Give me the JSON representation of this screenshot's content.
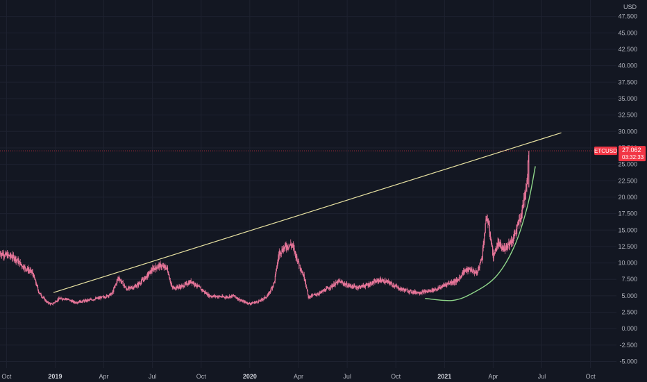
{
  "chart_data": {
    "type": "candlestick",
    "symbol": "ETCUSD",
    "currency": "USD",
    "last_price": "27.062",
    "countdown": "03:32:33",
    "y_ticks": [
      "47.500",
      "45.000",
      "42.500",
      "40.000",
      "37.500",
      "35.000",
      "32.500",
      "30.000",
      "27.500",
      "25.000",
      "22.500",
      "20.000",
      "17.500",
      "15.000",
      "12.500",
      "10.000",
      "7.500",
      "5.000",
      "2.500",
      "0.000",
      "-2.500",
      "-5.000"
    ],
    "y_tick_values": [
      47.5,
      45,
      42.5,
      40,
      37.5,
      35,
      32.5,
      30,
      27.5,
      25,
      22.5,
      20,
      17.5,
      15,
      12.5,
      10,
      7.5,
      5,
      2.5,
      0,
      -2.5,
      -5
    ],
    "ylim": [
      -6,
      50
    ],
    "x_ticks": [
      {
        "label": "Oct",
        "bold": false
      },
      {
        "label": "2019",
        "bold": true
      },
      {
        "label": "Apr",
        "bold": false
      },
      {
        "label": "Jul",
        "bold": false
      },
      {
        "label": "Oct",
        "bold": false
      },
      {
        "label": "2020",
        "bold": true
      },
      {
        "label": "Apr",
        "bold": false
      },
      {
        "label": "Jul",
        "bold": false
      },
      {
        "label": "Oct",
        "bold": false
      },
      {
        "label": "2021",
        "bold": true
      },
      {
        "label": "Apr",
        "bold": false
      },
      {
        "label": "Jul",
        "bold": false
      },
      {
        "label": "Oct",
        "bold": false
      }
    ],
    "x_tick_months": [
      0,
      3,
      6,
      9,
      12,
      15,
      18,
      21,
      24,
      27,
      30,
      33,
      36
    ],
    "xlim_months": [
      -0.4,
      37.6
    ],
    "price_path": [
      [
        -0.4,
        11.5
      ],
      [
        0.5,
        10.8
      ],
      [
        1.0,
        9.5
      ],
      [
        1.6,
        8.5
      ],
      [
        2.0,
        5.5
      ],
      [
        2.5,
        4.0
      ],
      [
        2.8,
        3.7
      ],
      [
        3.2,
        4.5
      ],
      [
        3.6,
        4.6
      ],
      [
        4.2,
        4.0
      ],
      [
        5.0,
        4.3
      ],
      [
        6.0,
        4.8
      ],
      [
        6.5,
        5.3
      ],
      [
        6.9,
        7.8
      ],
      [
        7.4,
        6.0
      ],
      [
        8.0,
        6.5
      ],
      [
        8.5,
        7.6
      ],
      [
        9.0,
        9.0
      ],
      [
        9.4,
        9.6
      ],
      [
        9.9,
        9.2
      ],
      [
        10.2,
        6.2
      ],
      [
        10.8,
        6.4
      ],
      [
        11.4,
        7.2
      ],
      [
        12.0,
        6.0
      ],
      [
        12.5,
        5.0
      ],
      [
        13.5,
        4.8
      ],
      [
        14.0,
        5.0
      ],
      [
        14.5,
        4.2
      ],
      [
        15.0,
        3.8
      ],
      [
        15.6,
        4.2
      ],
      [
        16.1,
        5.0
      ],
      [
        16.5,
        7.0
      ],
      [
        16.8,
        11.5
      ],
      [
        17.2,
        12.5
      ],
      [
        17.6,
        12.8
      ],
      [
        18.0,
        10.0
      ],
      [
        18.4,
        7.5
      ],
      [
        18.6,
        4.8
      ],
      [
        19.3,
        5.4
      ],
      [
        20.0,
        6.4
      ],
      [
        20.5,
        7.2
      ],
      [
        21.0,
        6.6
      ],
      [
        21.6,
        6.3
      ],
      [
        22.2,
        6.6
      ],
      [
        23.0,
        7.4
      ],
      [
        23.6,
        7.0
      ],
      [
        24.2,
        6.1
      ],
      [
        25.0,
        5.6
      ],
      [
        25.5,
        5.5
      ],
      [
        26.0,
        5.7
      ],
      [
        26.6,
        6.1
      ],
      [
        27.2,
        6.9
      ],
      [
        27.8,
        7.3
      ],
      [
        28.2,
        8.8
      ],
      [
        28.6,
        9.0
      ],
      [
        29.0,
        8.4
      ],
      [
        29.3,
        10.8
      ],
      [
        29.6,
        17.2
      ],
      [
        29.8,
        14.5
      ],
      [
        30.0,
        11.0
      ],
      [
        30.3,
        13.0
      ],
      [
        30.6,
        12.0
      ],
      [
        30.9,
        12.8
      ],
      [
        31.2,
        13.5
      ],
      [
        31.5,
        15.5
      ],
      [
        31.75,
        17.5
      ],
      [
        31.95,
        20.5
      ],
      [
        32.1,
        23.0
      ],
      [
        32.2,
        27.062
      ]
    ],
    "resistance_line": {
      "from": [
        2.9,
        5.5
      ],
      "to": [
        34.2,
        29.8
      ]
    },
    "support_curve": [
      [
        25.8,
        4.6
      ],
      [
        27.5,
        4.3
      ],
      [
        28.8,
        5.5
      ],
      [
        30.2,
        8.0
      ],
      [
        31.3,
        12.5
      ],
      [
        32.1,
        18.5
      ],
      [
        32.6,
        24.7
      ]
    ],
    "colors": {
      "background": "#131722",
      "candle": "#e8769a",
      "resistance_line": "#e8e2a2",
      "support_curve": "#8fd68a",
      "last_price_line": "#f23645",
      "label_bg": "#f23645",
      "axis_text": "#b2b5be",
      "grid": "#1e2230"
    }
  }
}
